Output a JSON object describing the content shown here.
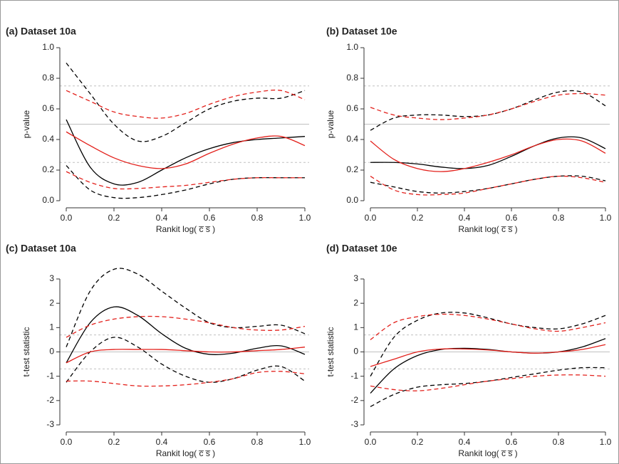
{
  "chart_data": [
    {
      "type": "line",
      "title": "(a) Dataset 10a",
      "xlabel": "Rankit log( c̅ s̅ )",
      "ylabel": "p-value",
      "x": [
        0,
        0.1,
        0.2,
        0.3,
        0.4,
        0.5,
        0.6,
        0.7,
        0.8,
        0.9,
        1.0
      ],
      "xlim": [
        0,
        1
      ],
      "xticks": [
        {
          "value": 0,
          "label": "0.0"
        },
        0.2,
        0.4,
        0.6,
        0.8,
        {
          "value": 1,
          "label": "1.0"
        }
      ],
      "ylim": [
        0,
        1
      ],
      "yticks": [
        {
          "value": 0,
          "label": "0.0"
        },
        0.2,
        0.4,
        0.6,
        0.8,
        {
          "value": 1,
          "label": "1.0"
        }
      ],
      "reference_lines": [
        {
          "value": 0.25,
          "dash": true
        },
        {
          "value": 0.5,
          "dash": false
        },
        {
          "value": 0.75,
          "dash": true
        }
      ],
      "series": [
        {
          "color": "#000000",
          "dash": false,
          "values": [
            0.53,
            0.22,
            0.11,
            0.12,
            0.2,
            0.28,
            0.34,
            0.38,
            0.4,
            0.41,
            0.42
          ]
        },
        {
          "color": "#000000",
          "dash": true,
          "values": [
            0.9,
            0.7,
            0.5,
            0.39,
            0.42,
            0.51,
            0.6,
            0.65,
            0.67,
            0.67,
            0.72
          ]
        },
        {
          "color": "#000000",
          "dash": true,
          "values": [
            0.23,
            0.07,
            0.02,
            0.02,
            0.04,
            0.07,
            0.11,
            0.14,
            0.15,
            0.15,
            0.15
          ]
        },
        {
          "color": "#e3201b",
          "dash": false,
          "values": [
            0.45,
            0.36,
            0.28,
            0.23,
            0.21,
            0.24,
            0.31,
            0.37,
            0.41,
            0.42,
            0.36
          ]
        },
        {
          "color": "#e3201b",
          "dash": true,
          "values": [
            0.72,
            0.65,
            0.58,
            0.55,
            0.54,
            0.57,
            0.63,
            0.68,
            0.71,
            0.72,
            0.66
          ]
        },
        {
          "color": "#e3201b",
          "dash": true,
          "values": [
            0.19,
            0.12,
            0.08,
            0.08,
            0.09,
            0.1,
            0.12,
            0.14,
            0.15,
            0.15,
            0.15
          ]
        }
      ]
    },
    {
      "type": "line",
      "title": "(b) Dataset 10e",
      "xlabel": "Rankit log( c̅ s̅ )",
      "ylabel": "p-value",
      "x": [
        0,
        0.1,
        0.2,
        0.3,
        0.4,
        0.5,
        0.6,
        0.7,
        0.8,
        0.9,
        1.0
      ],
      "xlim": [
        0,
        1
      ],
      "xticks": [
        {
          "value": 0,
          "label": "0.0"
        },
        0.2,
        0.4,
        0.6,
        0.8,
        {
          "value": 1,
          "label": "1.0"
        }
      ],
      "ylim": [
        0,
        1
      ],
      "yticks": [
        {
          "value": 0,
          "label": "0.0"
        },
        0.2,
        0.4,
        0.6,
        0.8,
        {
          "value": 1,
          "label": "1.0"
        }
      ],
      "reference_lines": [
        {
          "value": 0.25,
          "dash": true
        },
        {
          "value": 0.5,
          "dash": false
        },
        {
          "value": 0.75,
          "dash": true
        }
      ],
      "series": [
        {
          "color": "#000000",
          "dash": false,
          "values": [
            0.25,
            0.25,
            0.24,
            0.22,
            0.21,
            0.23,
            0.29,
            0.36,
            0.41,
            0.41,
            0.34
          ]
        },
        {
          "color": "#000000",
          "dash": true,
          "values": [
            0.46,
            0.54,
            0.56,
            0.56,
            0.55,
            0.56,
            0.6,
            0.66,
            0.71,
            0.71,
            0.62
          ]
        },
        {
          "color": "#000000",
          "dash": true,
          "values": [
            0.12,
            0.09,
            0.06,
            0.05,
            0.06,
            0.08,
            0.11,
            0.14,
            0.16,
            0.16,
            0.13
          ]
        },
        {
          "color": "#e3201b",
          "dash": false,
          "values": [
            0.39,
            0.27,
            0.21,
            0.19,
            0.21,
            0.25,
            0.3,
            0.36,
            0.4,
            0.39,
            0.31
          ]
        },
        {
          "color": "#e3201b",
          "dash": true,
          "values": [
            0.61,
            0.56,
            0.54,
            0.53,
            0.54,
            0.56,
            0.6,
            0.65,
            0.69,
            0.7,
            0.69
          ]
        },
        {
          "color": "#e3201b",
          "dash": true,
          "values": [
            0.16,
            0.07,
            0.04,
            0.04,
            0.05,
            0.08,
            0.11,
            0.14,
            0.16,
            0.15,
            0.12
          ]
        }
      ]
    },
    {
      "type": "line",
      "title": "(c) Dataset 10a",
      "xlabel": "Rankit log( c̅ s̅ )",
      "ylabel": "t-test statistic",
      "x": [
        0,
        0.1,
        0.2,
        0.3,
        0.4,
        0.5,
        0.6,
        0.7,
        0.8,
        0.9,
        1.0
      ],
      "xlim": [
        0,
        1
      ],
      "xticks": [
        {
          "value": 0,
          "label": "0.0"
        },
        0.2,
        0.4,
        0.6,
        0.8,
        {
          "value": 1,
          "label": "1.0"
        }
      ],
      "ylim": [
        -3,
        3
      ],
      "yticks": [
        -3,
        -2,
        -1,
        0,
        1,
        2,
        3
      ],
      "reference_lines": [
        {
          "value": -0.7,
          "dash": true
        },
        {
          "value": 0,
          "dash": false
        },
        {
          "value": 0.7,
          "dash": true
        }
      ],
      "series": [
        {
          "color": "#000000",
          "dash": false,
          "values": [
            -0.45,
            1.2,
            1.85,
            1.5,
            0.75,
            0.15,
            -0.1,
            -0.05,
            0.15,
            0.25,
            -0.1
          ]
        },
        {
          "color": "#000000",
          "dash": true,
          "values": [
            0.2,
            2.5,
            3.4,
            3.2,
            2.5,
            1.8,
            1.2,
            1.0,
            1.05,
            1.1,
            0.75
          ]
        },
        {
          "color": "#000000",
          "dash": true,
          "values": [
            -1.25,
            0.0,
            0.6,
            0.2,
            -0.5,
            -1.0,
            -1.25,
            -1.1,
            -0.75,
            -0.6,
            -1.2
          ]
        },
        {
          "color": "#e3201b",
          "dash": false,
          "values": [
            -0.45,
            0.0,
            0.1,
            0.1,
            0.1,
            0.05,
            0.0,
            0.0,
            0.05,
            0.1,
            0.2
          ]
        },
        {
          "color": "#e3201b",
          "dash": true,
          "values": [
            0.6,
            1.1,
            1.35,
            1.45,
            1.45,
            1.35,
            1.2,
            1.0,
            0.9,
            0.9,
            1.05
          ]
        },
        {
          "color": "#e3201b",
          "dash": true,
          "values": [
            -1.2,
            -1.2,
            -1.3,
            -1.4,
            -1.4,
            -1.35,
            -1.25,
            -1.1,
            -0.85,
            -0.8,
            -0.9
          ]
        }
      ]
    },
    {
      "type": "line",
      "title": "(d) Dataset 10e",
      "xlabel": "Rankit log( c̅ s̅ )",
      "ylabel": "t-test statistic",
      "x": [
        0,
        0.1,
        0.2,
        0.3,
        0.4,
        0.5,
        0.6,
        0.7,
        0.8,
        0.9,
        1.0
      ],
      "xlim": [
        0,
        1
      ],
      "xticks": [
        {
          "value": 0,
          "label": "0.0"
        },
        0.2,
        0.4,
        0.6,
        0.8,
        {
          "value": 1,
          "label": "1.0"
        }
      ],
      "ylim": [
        -3,
        3
      ],
      "yticks": [
        -3,
        -2,
        -1,
        0,
        1,
        2,
        3
      ],
      "reference_lines": [
        {
          "value": -0.7,
          "dash": true
        },
        {
          "value": 0,
          "dash": false
        },
        {
          "value": 0.7,
          "dash": true
        }
      ],
      "series": [
        {
          "color": "#000000",
          "dash": false,
          "values": [
            -1.7,
            -0.7,
            -0.15,
            0.1,
            0.15,
            0.1,
            0.0,
            -0.05,
            0.0,
            0.2,
            0.55
          ]
        },
        {
          "color": "#000000",
          "dash": true,
          "values": [
            -1.0,
            0.6,
            1.3,
            1.6,
            1.6,
            1.4,
            1.15,
            1.0,
            0.95,
            1.15,
            1.5
          ]
        },
        {
          "color": "#000000",
          "dash": true,
          "values": [
            -2.25,
            -1.75,
            -1.45,
            -1.35,
            -1.3,
            -1.2,
            -1.05,
            -0.9,
            -0.75,
            -0.65,
            -0.65
          ]
        },
        {
          "color": "#e3201b",
          "dash": false,
          "values": [
            -0.6,
            -0.3,
            0.0,
            0.12,
            0.12,
            0.08,
            0.0,
            -0.05,
            0.0,
            0.1,
            0.3
          ]
        },
        {
          "color": "#e3201b",
          "dash": true,
          "values": [
            0.5,
            1.2,
            1.45,
            1.55,
            1.5,
            1.35,
            1.15,
            0.95,
            0.85,
            1.0,
            1.2
          ]
        },
        {
          "color": "#e3201b",
          "dash": true,
          "values": [
            -1.4,
            -1.55,
            -1.6,
            -1.5,
            -1.35,
            -1.2,
            -1.1,
            -1.0,
            -0.95,
            -0.95,
            -1.0
          ]
        }
      ]
    }
  ]
}
